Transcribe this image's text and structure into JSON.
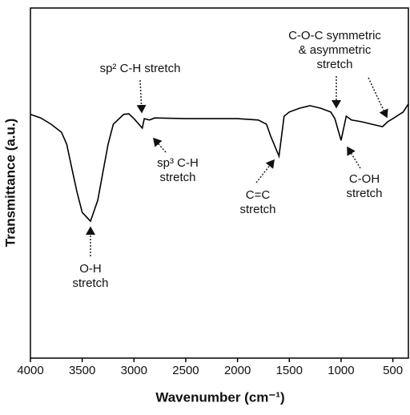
{
  "chart_data": {
    "type": "line",
    "x_label": "Wavenumber (cm⁻¹)",
    "y_label": "Transmittance (a.u.)",
    "xlim": [
      4000,
      350
    ],
    "ylim": [
      0,
      100
    ],
    "xticks": [
      4000,
      3500,
      3000,
      2500,
      2000,
      1500,
      1000,
      500
    ],
    "series": [
      {
        "color": "#000000",
        "x": [
          4000,
          3900,
          3800,
          3700,
          3650,
          3600,
          3550,
          3500,
          3420,
          3350,
          3300,
          3250,
          3200,
          3100,
          3050,
          3000,
          2920,
          2900,
          2850,
          2800,
          2500,
          2000,
          1800,
          1720,
          1680,
          1600,
          1550,
          1500,
          1400,
          1300,
          1200,
          1100,
          1060,
          1000,
          950,
          900,
          800,
          700,
          600,
          550,
          500,
          400,
          350
        ],
        "values": [
          69.6,
          68.6,
          66.8,
          64.5,
          61.1,
          54.2,
          47.4,
          41.6,
          39.1,
          45.1,
          53.1,
          61.1,
          66.8,
          69.6,
          69.8,
          68.4,
          65.7,
          68.4,
          68.0,
          68.6,
          68.4,
          68.4,
          68.0,
          66.8,
          63.4,
          57.7,
          69.1,
          70.3,
          71.4,
          72.1,
          71.4,
          70.3,
          68.4,
          62.2,
          69.1,
          68.0,
          67.5,
          66.8,
          66.1,
          67.5,
          68.4,
          70.3,
          72.6
        ]
      }
    ],
    "annotations": [
      {
        "lines": [
          "sp² C-H stretch"
        ]
      },
      {
        "lines": [
          "sp³ C-H",
          "stretch"
        ]
      },
      {
        "lines": [
          "O-H",
          "stretch"
        ]
      },
      {
        "lines": [
          "C=C",
          "stretch"
        ]
      },
      {
        "lines": [
          "C-OH",
          "stretch"
        ]
      },
      {
        "lines": [
          "C-O-C symmetric",
          "& asymmetric",
          "stretch"
        ]
      }
    ]
  }
}
